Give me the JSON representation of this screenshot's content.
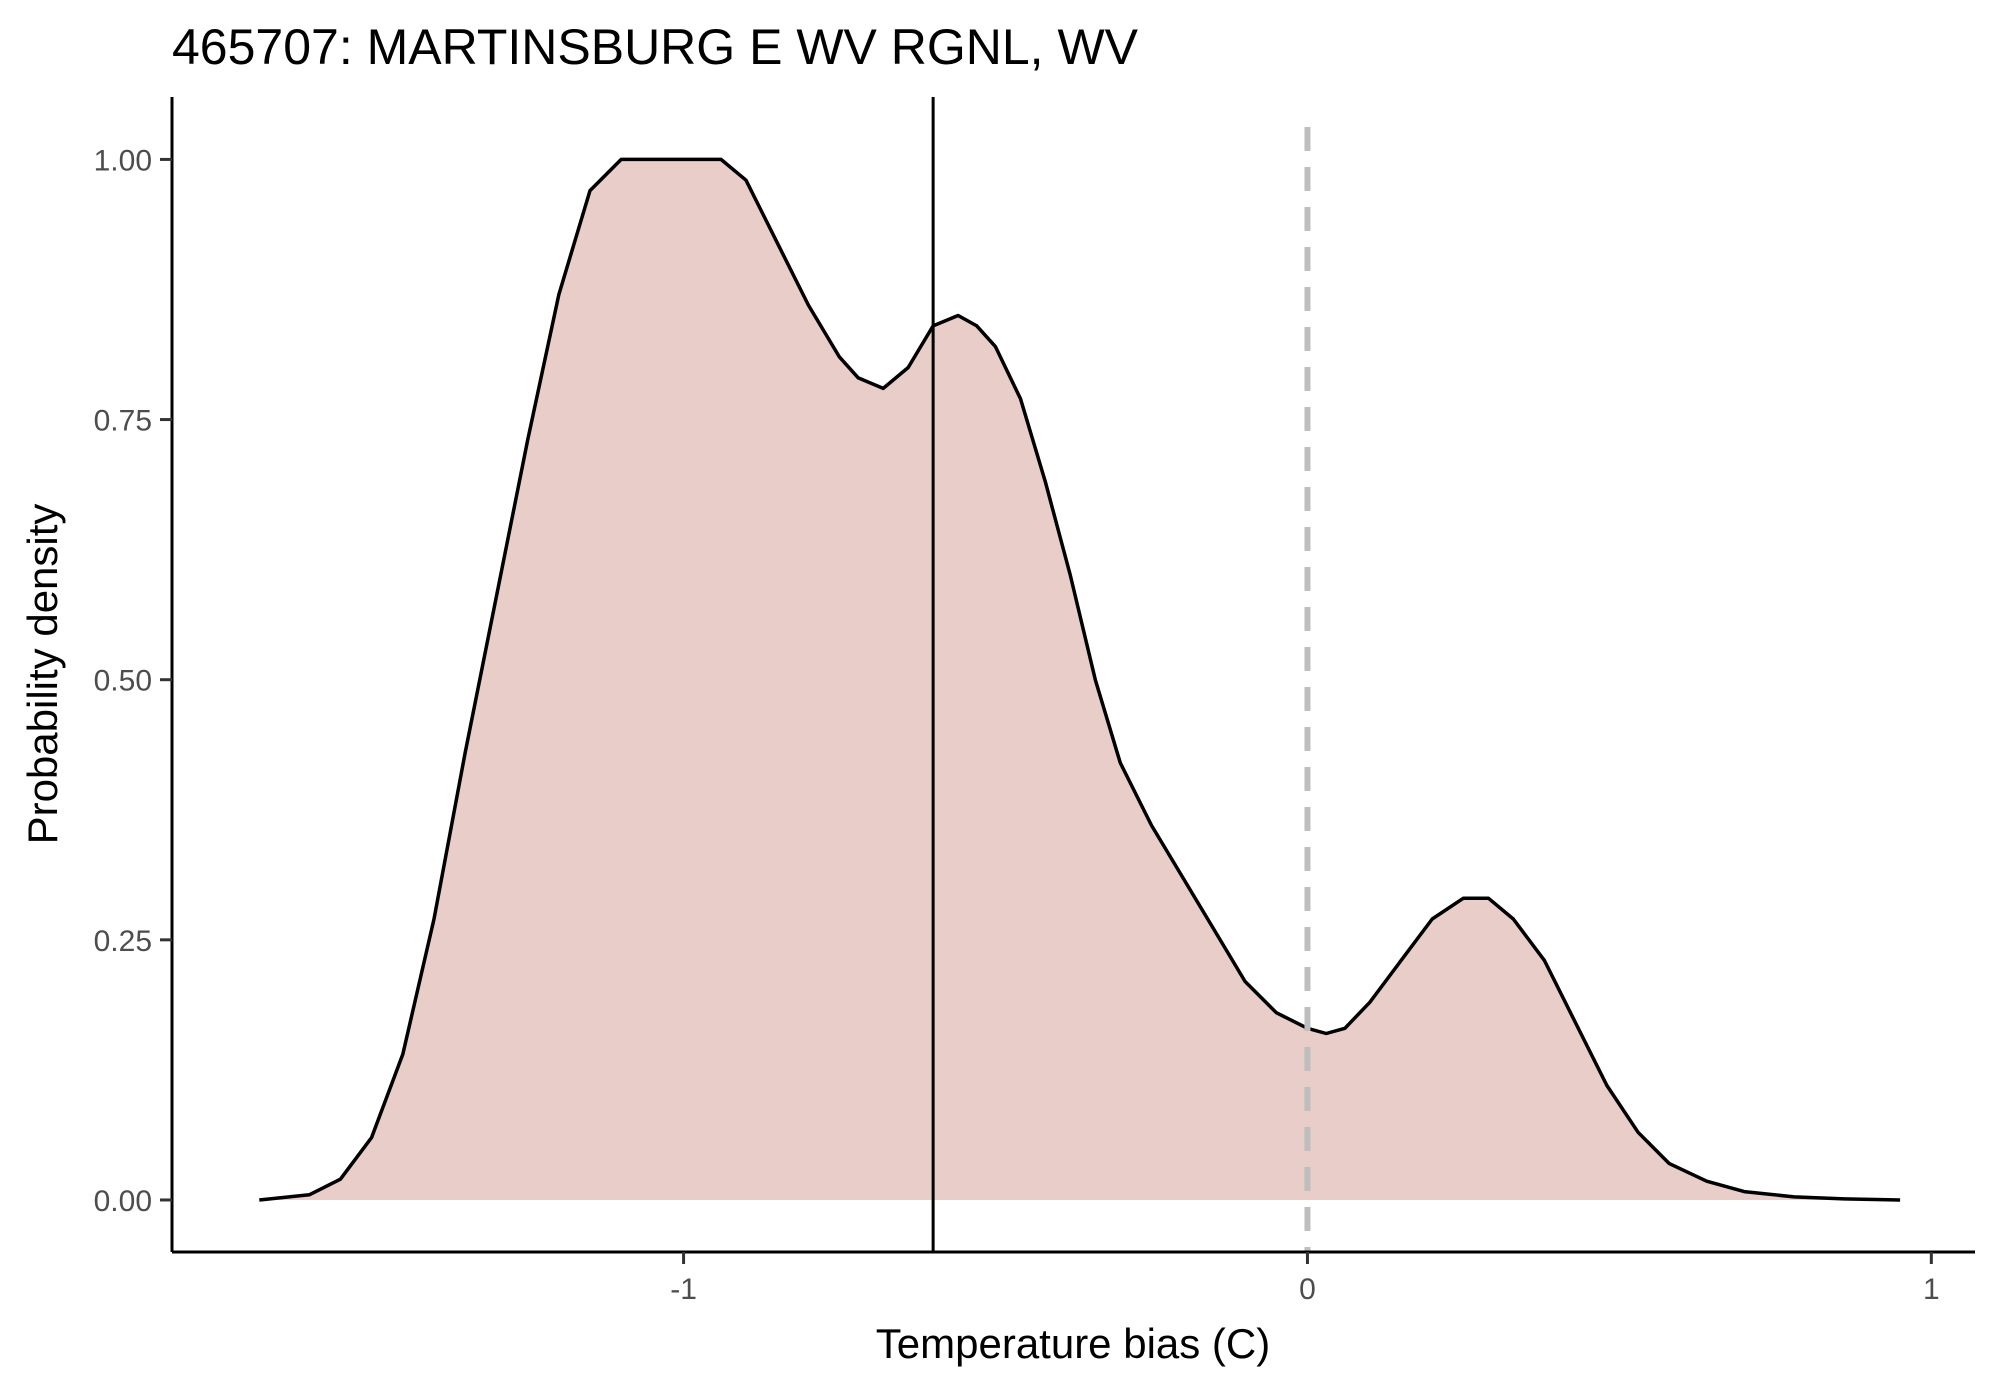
{
  "chart_data": {
    "type": "area",
    "title": "465707: MARTINSBURG E WV RGNL, WV",
    "xlabel": "Temperature bias (C)",
    "ylabel": "Probability density",
    "xlim": [
      -1.82,
      1.07
    ],
    "ylim": [
      -0.05,
      1.06
    ],
    "x_ticks": [
      -1,
      0,
      1
    ],
    "x_tick_labels": [
      "-1",
      "0",
      "1"
    ],
    "y_ticks": [
      0,
      0.25,
      0.5,
      0.75,
      1.0
    ],
    "y_tick_labels": [
      "0.00",
      "0.25",
      "0.50",
      "0.75",
      "1.00"
    ],
    "grid": false,
    "series": [
      {
        "fill": "#e8cdc8",
        "line_color": "#000000",
        "x": [
          -1.68,
          -1.6,
          -1.55,
          -1.5,
          -1.45,
          -1.4,
          -1.35,
          -1.3,
          -1.25,
          -1.2,
          -1.15,
          -1.1,
          -1.05,
          -1.0,
          -0.97,
          -0.94,
          -0.9,
          -0.85,
          -0.8,
          -0.75,
          -0.72,
          -0.68,
          -0.64,
          -0.6,
          -0.56,
          -0.53,
          -0.5,
          -0.46,
          -0.42,
          -0.38,
          -0.34,
          -0.3,
          -0.25,
          -0.2,
          -0.15,
          -0.1,
          -0.05,
          0.0,
          0.03,
          0.06,
          0.1,
          0.15,
          0.2,
          0.25,
          0.29,
          0.33,
          0.38,
          0.43,
          0.48,
          0.53,
          0.58,
          0.64,
          0.7,
          0.78,
          0.86,
          0.95
        ],
        "y": [
          0.0,
          0.005,
          0.02,
          0.06,
          0.14,
          0.27,
          0.43,
          0.58,
          0.73,
          0.87,
          0.97,
          1.0,
          1.0,
          1.0,
          1.0,
          1.0,
          0.98,
          0.92,
          0.86,
          0.81,
          0.79,
          0.78,
          0.8,
          0.84,
          0.85,
          0.84,
          0.82,
          0.77,
          0.69,
          0.6,
          0.5,
          0.42,
          0.36,
          0.31,
          0.26,
          0.21,
          0.18,
          0.165,
          0.16,
          0.165,
          0.19,
          0.23,
          0.27,
          0.29,
          0.29,
          0.27,
          0.23,
          0.17,
          0.11,
          0.065,
          0.035,
          0.018,
          0.008,
          0.003,
          0.001,
          0.0
        ]
      }
    ],
    "reference_lines": [
      {
        "x": -0.6,
        "style": "solid",
        "color": "#000000"
      },
      {
        "x": 0.0,
        "style": "dashed",
        "color": "#bebebe"
      }
    ]
  }
}
